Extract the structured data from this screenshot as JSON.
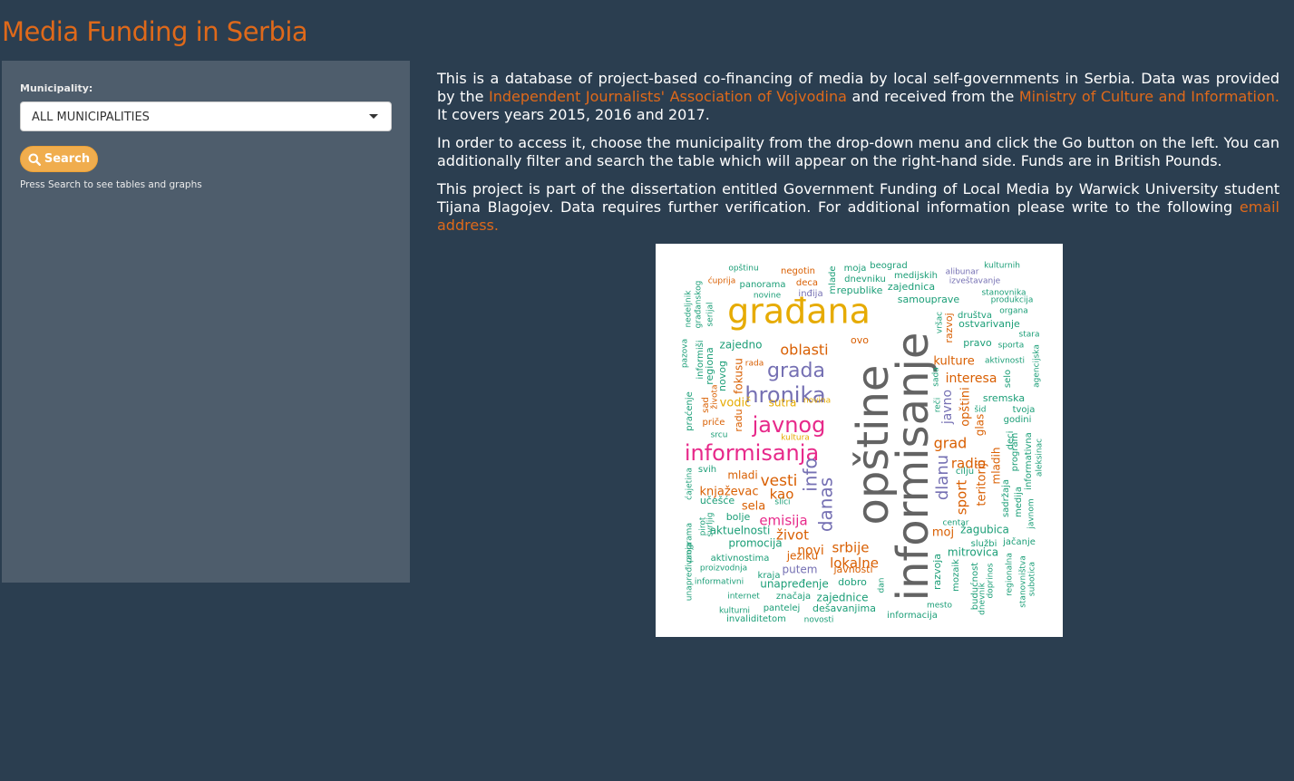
{
  "app": {
    "title": "Media Funding in Serbia"
  },
  "sidebar": {
    "municipality_label": "Municipality:",
    "municipality_value": "ALL MUNICIPALITIES",
    "search_label": "Search",
    "help_text": "Press Search to see tables and graphs"
  },
  "main": {
    "p1_a": "This is a database of project-based co-financing of media by local self-governments in Serbia. Data was provided by the",
    "p1_link1": "Independent Journalists' Association of Vojvodina",
    "p1_b": "and received from the",
    "p1_link2": "Ministry of Culture and Information.",
    "p1_c": "It covers years 2015, 2016 and 2017.",
    "p2": "In order to access it, choose the municipality from the drop-down menu and click the Go button on the left. You can additionally filter and search the table which will appear on the right-hand side. Funds are in British Pounds.",
    "p3_a": "This project is part of the dissertation entitled Government Funding of Local Media by Warwick University student Tijana Blagojev. Data requires further verification. For additional information please write to the following",
    "p3_link": "email address."
  },
  "colors": {
    "background": "#2b3e50",
    "sidebar": "#4e5d6c",
    "accent": "#df691a",
    "button": "#f0ad4e",
    "text": "#ffffff"
  },
  "icons": {
    "search": "search-icon",
    "dropdown": "caret-down-icon"
  },
  "wordcloud": {
    "words": [
      "informisanje",
      "opštine",
      "građana",
      "javnog",
      "informisanja",
      "hronika",
      "grada",
      "oblasti",
      "info",
      "danas",
      "vesti",
      "kao",
      "emisija",
      "život",
      "srbije",
      "lokalne",
      "grad",
      "radio",
      "dlanu",
      "sport",
      "interesa",
      "javno",
      "kulture",
      "novi",
      "knjaževac",
      "sela",
      "mladi",
      "teritoriji",
      "opštini",
      "mladih",
      "glas",
      "srb",
      "samouprave",
      "republike",
      "zajednica",
      "medijskih",
      "dnevniku",
      "beograd",
      "moja",
      "negotin",
      "deca",
      "inđija",
      "mlade",
      "opštinu",
      "panorama",
      "novine",
      "ćuprija",
      "alibunar",
      "izveštavanje",
      "kulturnih",
      "stanovnika",
      "produkcija",
      "organa",
      "društva",
      "ostvarivanje",
      "vršac",
      "razvoj",
      "pravo",
      "sporta",
      "stara",
      "aktivnosti",
      "selo",
      "agencijska",
      "sada",
      "reči",
      "šid",
      "sremska",
      "tvoja",
      "godini",
      "deci",
      "program",
      "informativna",
      "aleksinac",
      "sadržaja",
      "medija",
      "javnom",
      "centar",
      "cilju",
      "moj",
      "žagubica",
      "službi",
      "jačanje",
      "mitrovica",
      "mozaik",
      "razvoja",
      "budućnost",
      "dnevnik",
      "doprinos",
      "regionalna",
      "stanovništva",
      "subotica",
      "mesto",
      "informacija",
      "dan",
      "dešavanjima",
      "zajednice",
      "pantelej",
      "invaliditetom",
      "novosti",
      "kulturni",
      "internet",
      "značaja",
      "unapređenje",
      "dobro",
      "kraja",
      "putem",
      "javnosti",
      "jeziku",
      "informativni",
      "proizvodnja",
      "aktivnostima",
      "promocija",
      "aktuelnosti",
      "bolje",
      "učešće",
      "slici",
      "pirot",
      "svrljig",
      "programa",
      "unapređivanja",
      "ćajetina",
      "svih",
      "srcu",
      "priče",
      "praćenje",
      "sad",
      "života",
      "radu",
      "vodič",
      "sutra",
      "novina",
      "kultura",
      "fokusu",
      "rada",
      "novog",
      "regiona",
      "informiši",
      "pazova",
      "zajedno",
      "ovo",
      "serijal",
      "građanskog",
      "nedeljnik"
    ]
  }
}
